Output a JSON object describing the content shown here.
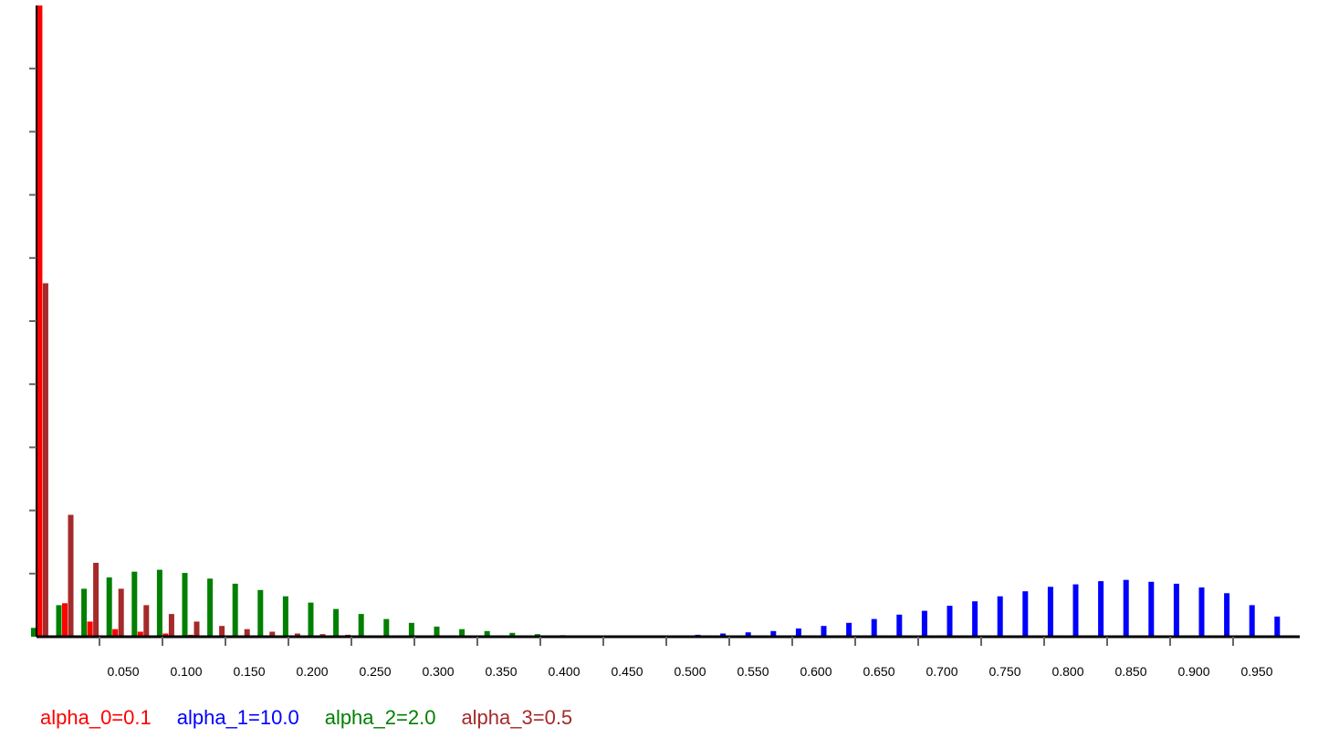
{
  "chart_data": {
    "type": "bar",
    "title": "",
    "xlabel": "",
    "ylabel": "",
    "grid": false,
    "legend_position": "bottom",
    "x": [
      0.005,
      0.025,
      0.045,
      0.065,
      0.085,
      0.105,
      0.125,
      0.145,
      0.165,
      0.185,
      0.205,
      0.225,
      0.245,
      0.265,
      0.285,
      0.305,
      0.325,
      0.345,
      0.365,
      0.385,
      0.405,
      0.425,
      0.445,
      0.465,
      0.485,
      0.505,
      0.525,
      0.545,
      0.565,
      0.585,
      0.605,
      0.625,
      0.645,
      0.665,
      0.685,
      0.705,
      0.725,
      0.745,
      0.765,
      0.785,
      0.805,
      0.825,
      0.845,
      0.865,
      0.885,
      0.905,
      0.925,
      0.945,
      0.965,
      0.985
    ],
    "xlim": [
      0.0,
      1.0
    ],
    "ylim": [
      0,
      100
    ],
    "x_tick_labels": [
      "0.050",
      "0.100",
      "0.150",
      "0.200",
      "0.250",
      "0.300",
      "0.350",
      "0.400",
      "0.450",
      "0.500",
      "0.550",
      "0.600",
      "0.650",
      "0.700",
      "0.750",
      "0.800",
      "0.850",
      "0.900",
      "0.950"
    ],
    "y_ticks": [
      10,
      20,
      30,
      40,
      50,
      60,
      70,
      80,
      90
    ],
    "series": [
      {
        "name": "alpha_0=0.1",
        "color": "#ff0000",
        "values": [
          100,
          5.3,
          2.4,
          1.2,
          0.8,
          0.5,
          0.3,
          0.2,
          0.15,
          0.1,
          0.08,
          0.06,
          0.05,
          0.04,
          0.03,
          0.03,
          0.02,
          0.02,
          0.02,
          0.01,
          0.01,
          0.01,
          0.01,
          0.01,
          0.01,
          0.01,
          0.01,
          0.01,
          0,
          0,
          0,
          0,
          0,
          0,
          0,
          0,
          0,
          0,
          0,
          0,
          0,
          0,
          0,
          0,
          0,
          0,
          0,
          0,
          0,
          0
        ]
      },
      {
        "name": "alpha_1=10.0",
        "color": "#0000ff",
        "values": [
          0,
          0,
          0,
          0,
          0,
          0,
          0,
          0,
          0,
          0,
          0,
          0,
          0,
          0,
          0,
          0,
          0,
          0,
          0,
          0,
          0,
          0,
          0,
          0,
          0.1,
          0.2,
          0.3,
          0.5,
          0.7,
          0.9,
          1.3,
          1.7,
          2.2,
          2.8,
          3.5,
          4.1,
          4.9,
          5.6,
          6.4,
          7.2,
          7.9,
          8.3,
          8.8,
          9.0,
          8.7,
          8.4,
          7.8,
          6.9,
          5.0,
          3.2
        ]
      },
      {
        "name": "alpha_2=2.0",
        "color": "#008000",
        "values": [
          1.4,
          5.0,
          7.6,
          9.4,
          10.3,
          10.6,
          10.1,
          9.2,
          8.4,
          7.4,
          6.4,
          5.4,
          4.4,
          3.6,
          2.8,
          2.2,
          1.6,
          1.2,
          0.9,
          0.6,
          0.4,
          0.25,
          0.15,
          0.1,
          0.05,
          0,
          0,
          0,
          0,
          0,
          0,
          0,
          0,
          0,
          0,
          0,
          0,
          0,
          0,
          0,
          0,
          0,
          0,
          0,
          0,
          0,
          0,
          0,
          0,
          0
        ]
      },
      {
        "name": "alpha_3=0.5",
        "color": "#a52a2a",
        "values": [
          56,
          19.3,
          11.7,
          7.6,
          5.0,
          3.6,
          2.4,
          1.7,
          1.2,
          0.8,
          0.5,
          0.4,
          0.3,
          0.2,
          0.15,
          0.1,
          0.08,
          0.06,
          0.05,
          0.04,
          0.03,
          0.02,
          0.02,
          0.01,
          0.01,
          0.01,
          0,
          0,
          0,
          0,
          0,
          0,
          0,
          0,
          0,
          0,
          0,
          0,
          0,
          0,
          0,
          0,
          0,
          0,
          0,
          0,
          0,
          0,
          0,
          0
        ]
      }
    ]
  }
}
